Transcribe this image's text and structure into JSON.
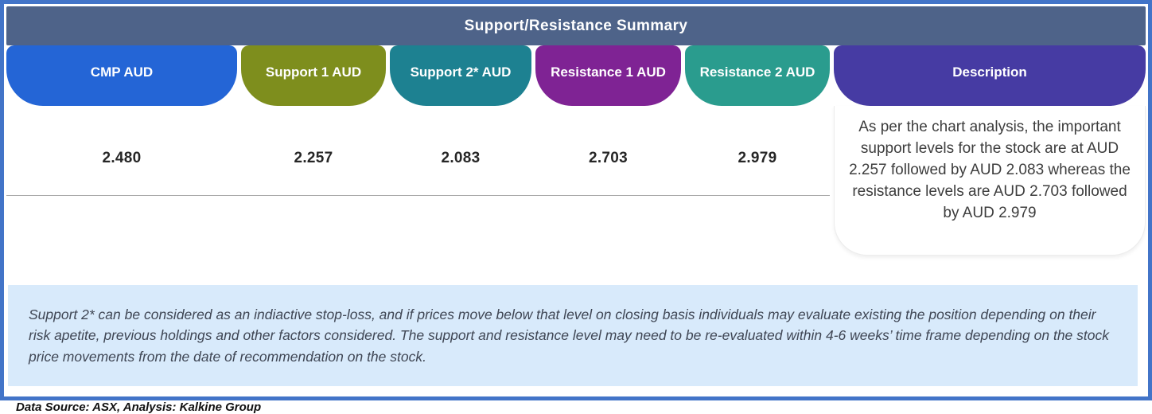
{
  "header": {
    "title": "Support/Resistance Summary"
  },
  "table": {
    "columns": [
      {
        "label": "CMP AUD",
        "color": "#2465d6",
        "value": "2.480"
      },
      {
        "label": "Support 1 AUD",
        "color": "#7e8e1d",
        "value": "2.257"
      },
      {
        "label": "Support 2* AUD",
        "color": "#1d8191",
        "value": "2.083"
      },
      {
        "label": "Resistance 1 AUD",
        "color": "#7f2394",
        "value": "2.703"
      },
      {
        "label": "Resistance 2 AUD",
        "color": "#2a9c8e",
        "value": "2.979"
      },
      {
        "label": "Description",
        "color": "#463ba3"
      }
    ],
    "description": "As per the chart analysis, the important support levels for the stock are at AUD 2.257 followed by AUD 2.083 whereas the resistance levels are AUD 2.703 followed by AUD 2.979"
  },
  "footnote": {
    "text": "Support 2* can be considered as an indiactive stop-loss, and if prices move below that level on closing basis individuals may evaluate existing the position depending on their risk apetite, previous holdings and other factors considered. The support and resistance level may need to be re-evaluated within 4-6 weeks’ time frame depending on the stock price movements from  the date of recommendation on the stock."
  },
  "source": {
    "text": "Data Source: ASX, Analysis: Kalkine Group"
  },
  "colors": {
    "frame_border": "#4274c8",
    "title_band": "#4e6389",
    "note_background": "#d8eafb",
    "separator": "#a6a6a6"
  }
}
